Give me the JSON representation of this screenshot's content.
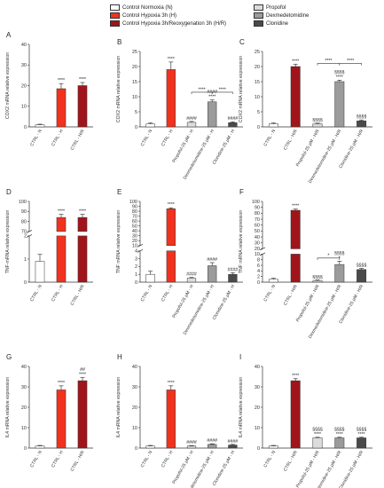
{
  "legend": {
    "items": [
      {
        "label": "Control Normoxia (N)",
        "color": "#ffffff"
      },
      {
        "label": "Control Hypoxia 3h (H)",
        "color": "#f0321e"
      },
      {
        "label": "Control Hypoxia 3h/Reoxygenation 3h (H/R)",
        "color": "#a0151b"
      },
      {
        "label": "Propofol",
        "color": "#dcdcdc"
      },
      {
        "label": "Dexmedetomidine",
        "color": "#9b9b9b"
      },
      {
        "label": "Clonidine",
        "color": "#4a4a4a"
      }
    ]
  },
  "chart_data": [
    {
      "panel": "A",
      "type": "bar",
      "ylabel": "COX2 mRNA relative expression",
      "yticks": [
        0,
        10,
        20,
        30,
        40
      ],
      "ylim": [
        0,
        40
      ],
      "categories": [
        "CTRL - N",
        "CTRL - H",
        "CTRL - H/R"
      ],
      "values": [
        1,
        18.5,
        20
      ],
      "errors": [
        0.3,
        2.5,
        1.5
      ],
      "colors": [
        "#ffffff",
        "#f0321e",
        "#a0151b"
      ],
      "annotations": [
        "",
        "****",
        "****"
      ],
      "brackets": []
    },
    {
      "panel": "B",
      "type": "bar",
      "ylabel": "COX2 mRNA relative expression",
      "yticks": [
        0,
        5,
        10,
        15,
        20,
        25
      ],
      "ylim": [
        0,
        25
      ],
      "categories": [
        "CTRL - N",
        "CTRL - H",
        "Propofol-25 µM - H",
        "Dexmedetomidine-25 µM - H",
        "Clonidine-25 µM - H"
      ],
      "values": [
        1,
        19,
        1.5,
        8.3,
        1.4
      ],
      "errors": [
        0.3,
        2.5,
        0.3,
        0.6,
        0.3
      ],
      "colors": [
        "#ffffff",
        "#f0321e",
        "#dcdcdc",
        "#9b9b9b",
        "#4a4a4a"
      ],
      "annotations": [
        "",
        "****",
        "####",
        "####|****",
        "####"
      ],
      "brackets": [
        {
          "from": 2,
          "to": 3,
          "y": 11.5,
          "label": "****"
        },
        {
          "from": 3,
          "to": 4,
          "y": 11.5,
          "label": "****"
        }
      ]
    },
    {
      "panel": "C",
      "type": "bar",
      "ylabel": "COX2 mRNA relative expression",
      "yticks": [
        0,
        5,
        10,
        15,
        20,
        25
      ],
      "ylim": [
        0,
        25
      ],
      "categories": [
        "CTRL - N",
        "CTRL - H/R",
        "Propofol-25 µM - H/R",
        "Dexmedetomidine-25 µM - H/R",
        "Clonidine-25 µM - H/R"
      ],
      "values": [
        1,
        20,
        1,
        15,
        2
      ],
      "errors": [
        0.3,
        0.8,
        0.2,
        0.5,
        0.3
      ],
      "colors": [
        "#ffffff",
        "#a0151b",
        "#dcdcdc",
        "#9b9b9b",
        "#4a4a4a"
      ],
      "annotations": [
        "",
        "****",
        "§§§§",
        "§§§§|****",
        "§§§§"
      ],
      "brackets": [
        {
          "from": 2,
          "to": 3,
          "y": 21,
          "label": "****"
        },
        {
          "from": 3,
          "to": 4,
          "y": 21,
          "label": "****"
        }
      ]
    },
    {
      "panel": "D",
      "type": "bar",
      "broken": true,
      "ylabel": "TNF-mRNA relative expression",
      "lower": {
        "ylim": [
          0,
          2
        ],
        "yticks": [
          0,
          1,
          2
        ]
      },
      "upper": {
        "ylim": [
          70,
          100
        ],
        "yticks": [
          70,
          80,
          90,
          100
        ]
      },
      "categories": [
        "CTRL - N",
        "CTRL - H",
        "CTRL - H/R"
      ],
      "values": [
        0.9,
        84,
        84
      ],
      "errors": [
        0.3,
        3,
        3
      ],
      "colors": [
        "#ffffff",
        "#f0321e",
        "#a0151b"
      ],
      "annotations": [
        "",
        "****",
        "****"
      ],
      "brackets": []
    },
    {
      "panel": "E",
      "type": "bar",
      "broken": true,
      "ylabel": "TNF mRNA relative expression",
      "lower": {
        "ylim": [
          0,
          4
        ],
        "yticks": [
          0,
          1,
          2,
          3,
          4
        ]
      },
      "upper": {
        "ylim": [
          10,
          100
        ],
        "yticks": [
          10,
          20,
          30,
          40,
          50,
          60,
          70,
          80,
          90,
          100
        ]
      },
      "categories": [
        "CTRL - N",
        "CTRL - H",
        "Propofol-25 µM - H",
        "Dexmedetomidine-25 µM - H",
        "Clonidine-25 µM - H"
      ],
      "values": [
        1,
        85,
        0.5,
        2.1,
        1
      ],
      "errors": [
        0.4,
        2,
        0.1,
        0.4,
        0.2
      ],
      "colors": [
        "#ffffff",
        "#f0321e",
        "#dcdcdc",
        "#9b9b9b",
        "#4a4a4a"
      ],
      "annotations": [
        "",
        "****",
        "####",
        "####",
        "####"
      ],
      "brackets": []
    },
    {
      "panel": "F",
      "type": "bar",
      "broken": true,
      "ylabel": "TNF mRNA relative expression",
      "lower": {
        "ylim": [
          0,
          10
        ],
        "yticks": [
          0,
          2,
          4,
          6,
          8,
          10
        ]
      },
      "upper": {
        "ylim": [
          20,
          100
        ],
        "yticks": [
          20,
          30,
          40,
          50,
          60,
          70,
          80,
          90,
          100
        ]
      },
      "categories": [
        "CTRL - N",
        "CTRL - H/R",
        "Propofol-25 µM - H/R",
        "Dexmedetomidine-25 µM - H/R",
        "Clonidine-25 µM - H/R"
      ],
      "values": [
        1,
        85,
        0.5,
        6.3,
        4.5
      ],
      "errors": [
        0.4,
        2,
        0.2,
        1.2,
        0.4
      ],
      "colors": [
        "#ffffff",
        "#a0151b",
        "#dcdcdc",
        "#9b9b9b",
        "#4a4a4a"
      ],
      "annotations": [
        "",
        "****",
        "§§§§",
        "§§§§|*",
        "§§§§"
      ],
      "brackets": [
        {
          "from": 2,
          "to": 3,
          "y": 8.6,
          "label": "*"
        }
      ]
    },
    {
      "panel": "G",
      "type": "bar",
      "ylabel": "IL4 mRNA relative expression",
      "yticks": [
        0,
        10,
        20,
        30,
        40
      ],
      "ylim": [
        0,
        40
      ],
      "categories": [
        "CTRL - N",
        "CTRL - H",
        "CTRL - H/R"
      ],
      "values": [
        1,
        28.5,
        33
      ],
      "errors": [
        0.3,
        2,
        1.5
      ],
      "colors": [
        "#ffffff",
        "#f0321e",
        "#a0151b"
      ],
      "annotations": [
        "",
        "****",
        "##|****"
      ],
      "brackets": []
    },
    {
      "panel": "H",
      "type": "bar",
      "ylabel": "IL4 mRNA relative expression",
      "yticks": [
        0,
        10,
        20,
        30,
        40
      ],
      "ylim": [
        0,
        40
      ],
      "categories": [
        "CTRL - N",
        "CTRL - H",
        "Propofol-25 µM - H",
        "Dexmedetomidine-25 µM - H",
        "Clonidine-25 µM - H"
      ],
      "values": [
        1,
        28.5,
        1,
        1.8,
        1.5
      ],
      "errors": [
        0.3,
        2,
        0.2,
        0.3,
        0.3
      ],
      "colors": [
        "#ffffff",
        "#f0321e",
        "#dcdcdc",
        "#9b9b9b",
        "#4a4a4a"
      ],
      "annotations": [
        "",
        "****",
        "####",
        "####",
        "####"
      ],
      "brackets": []
    },
    {
      "panel": "I",
      "type": "bar",
      "ylabel": "IL4 mRNA relative expression",
      "yticks": [
        0,
        10,
        20,
        30,
        40
      ],
      "ylim": [
        0,
        40
      ],
      "categories": [
        "CTRL - N",
        "CTRL - H/R",
        "Propofol-25 µM - H/R",
        "Dexmedetomidine-25 µM - H/R",
        "Clonidine-25 µM - H/R"
      ],
      "values": [
        1,
        33,
        5,
        5,
        5
      ],
      "errors": [
        0.3,
        1,
        0.3,
        0.3,
        0.3
      ],
      "colors": [
        "#ffffff",
        "#a0151b",
        "#dcdcdc",
        "#9b9b9b",
        "#4a4a4a"
      ],
      "annotations": [
        "",
        "****",
        "§§§§|****",
        "§§§§|****",
        "§§§§|****"
      ],
      "brackets": []
    }
  ]
}
